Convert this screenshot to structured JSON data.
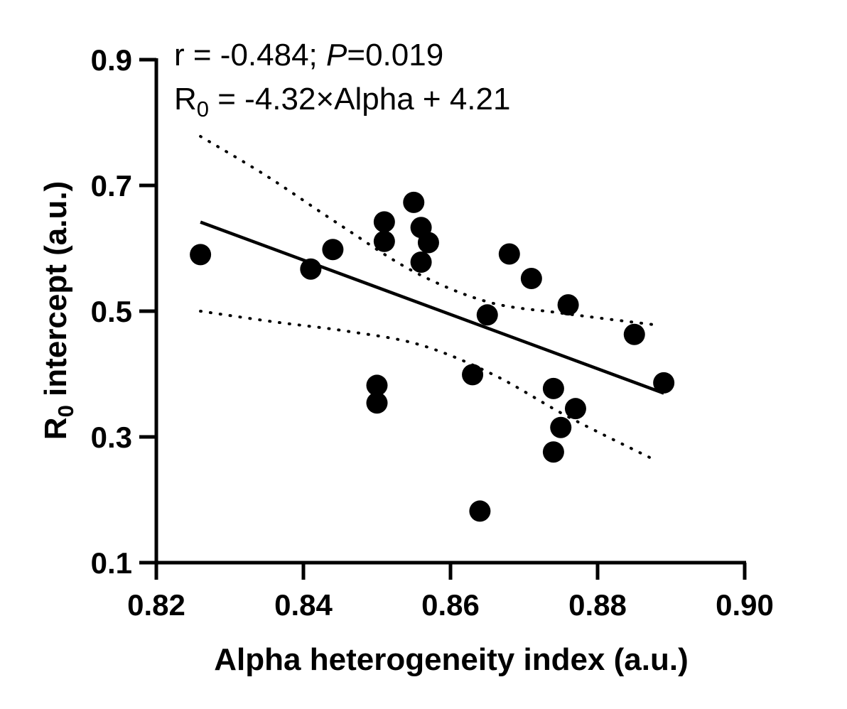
{
  "chart_data": {
    "type": "scatter",
    "title": "",
    "xlabel": "Alpha heterogeneity index (a.u.)",
    "ylabel_main": "R",
    "ylabel_sub": "0",
    "ylabel_rest": " intercept (a.u.)",
    "xlim": [
      0.82,
      0.9
    ],
    "ylim": [
      0.1,
      0.9
    ],
    "x_ticks": [
      0.82,
      0.84,
      0.86,
      0.88,
      0.9
    ],
    "x_tick_labels": [
      "0.82",
      "0.84",
      "0.86",
      "0.88",
      "0.90"
    ],
    "y_ticks": [
      0.1,
      0.3,
      0.5,
      0.7,
      0.9
    ],
    "y_tick_labels": [
      "0.1",
      "0.3",
      "0.5",
      "0.7",
      "0.9"
    ],
    "grid": false,
    "annotation": {
      "r_text": "r = -0.484; ",
      "p_italic": "P",
      "p_text": "=0.019",
      "eq_r": "R",
      "eq_sub": "0",
      "eq_rest": " = -4.32×Alpha + 4.21"
    },
    "points": [
      {
        "x": 0.826,
        "y": 0.59
      },
      {
        "x": 0.841,
        "y": 0.567
      },
      {
        "x": 0.844,
        "y": 0.598
      },
      {
        "x": 0.85,
        "y": 0.382
      },
      {
        "x": 0.85,
        "y": 0.354
      },
      {
        "x": 0.851,
        "y": 0.642
      },
      {
        "x": 0.851,
        "y": 0.611
      },
      {
        "x": 0.855,
        "y": 0.673
      },
      {
        "x": 0.856,
        "y": 0.633
      },
      {
        "x": 0.856,
        "y": 0.578
      },
      {
        "x": 0.857,
        "y": 0.609
      },
      {
        "x": 0.863,
        "y": 0.399
      },
      {
        "x": 0.864,
        "y": 0.182
      },
      {
        "x": 0.865,
        "y": 0.494
      },
      {
        "x": 0.868,
        "y": 0.591
      },
      {
        "x": 0.871,
        "y": 0.552
      },
      {
        "x": 0.874,
        "y": 0.377
      },
      {
        "x": 0.874,
        "y": 0.276
      },
      {
        "x": 0.875,
        "y": 0.315
      },
      {
        "x": 0.876,
        "y": 0.51
      },
      {
        "x": 0.877,
        "y": 0.345
      },
      {
        "x": 0.885,
        "y": 0.463
      },
      {
        "x": 0.889,
        "y": 0.386
      }
    ],
    "fit_line": {
      "slope": -4.32,
      "intercept": 4.21,
      "x_range": [
        0.826,
        0.889
      ]
    },
    "ci_upper": [
      [
        0.826,
        0.778
      ],
      [
        0.835,
        0.715
      ],
      [
        0.845,
        0.637
      ],
      [
        0.855,
        0.563
      ],
      [
        0.865,
        0.515
      ],
      [
        0.875,
        0.497
      ],
      [
        0.888,
        0.478
      ]
    ],
    "ci_lower": [
      [
        0.826,
        0.5
      ],
      [
        0.836,
        0.483
      ],
      [
        0.846,
        0.468
      ],
      [
        0.856,
        0.446
      ],
      [
        0.866,
        0.398
      ],
      [
        0.876,
        0.332
      ],
      [
        0.888,
        0.262
      ]
    ]
  }
}
